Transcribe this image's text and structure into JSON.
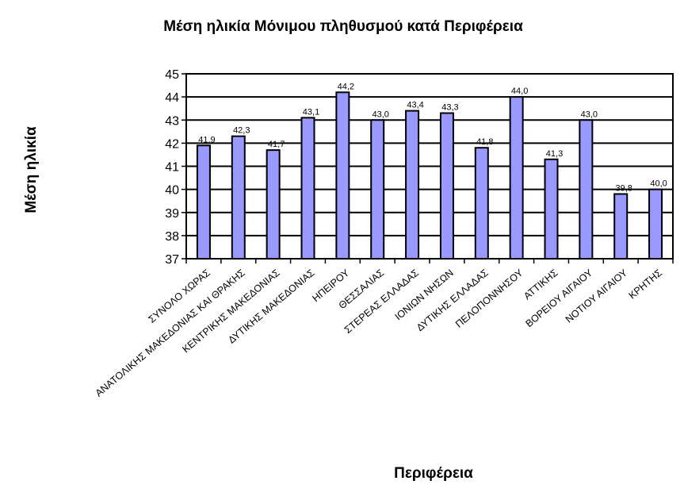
{
  "chart_data": {
    "type": "bar",
    "title": "Μέση ηλικία Μόνιμου πληθυσμού κατά Περιφέρεια",
    "xlabel": "Περιφέρεια",
    "ylabel": "Μέση ηλικία",
    "ylim": [
      37,
      45
    ],
    "yticks": [
      "37",
      "38",
      "39",
      "40",
      "41",
      "42",
      "43",
      "44",
      "45"
    ],
    "grid": true,
    "bar_color": "#9999ff",
    "categories": [
      "ΣΥΝΟΛΟ ΧΩΡΑΣ",
      "ΑΝΑΤΟΛΙΚΗΣ ΜΑΚΕΔΟΝΙΑΣ ΚΑΙ ΘΡΑΚΗΣ",
      "ΚΕΝΤΡΙΚΗΣ ΜΑΚΕΔΟΝΙΑΣ",
      "ΔΥΤΙΚΗΣ ΜΑΚΕΔΟΝΙΑΣ",
      "ΗΠΕΙΡΟΥ",
      "ΘΕΣΣΑΛΙΑΣ",
      "ΣΤΕΡΕΑΣ ΕΛΛΑΔΑΣ",
      "ΙΟΝΙΩΝ ΝΗΣΩΝ",
      "ΔΥΤΙΚΗΣ ΕΛΛΑΔΑΣ",
      "ΠΕΛΟΠΟΝΝΗΣΟΥ",
      "ΑΤΤΙΚΗΣ",
      "ΒΟΡΕΙΟΥ ΑΙΓΑΙΟΥ",
      "ΝΟΤΙΟΥ ΑΙΓΑΙΟΥ",
      "ΚΡΗΤΗΣ"
    ],
    "values": [
      41.9,
      42.3,
      41.7,
      43.1,
      44.2,
      43.0,
      43.4,
      43.3,
      41.8,
      44.0,
      41.3,
      43.0,
      39.8,
      40.0
    ],
    "data_labels": [
      "41,9",
      "42,3",
      "41,7",
      "43,1",
      "44,2",
      "43,0",
      "43,4",
      "43,3",
      "41,8",
      "44,0",
      "41,3",
      "43,0",
      "39,8",
      "40,0"
    ]
  }
}
